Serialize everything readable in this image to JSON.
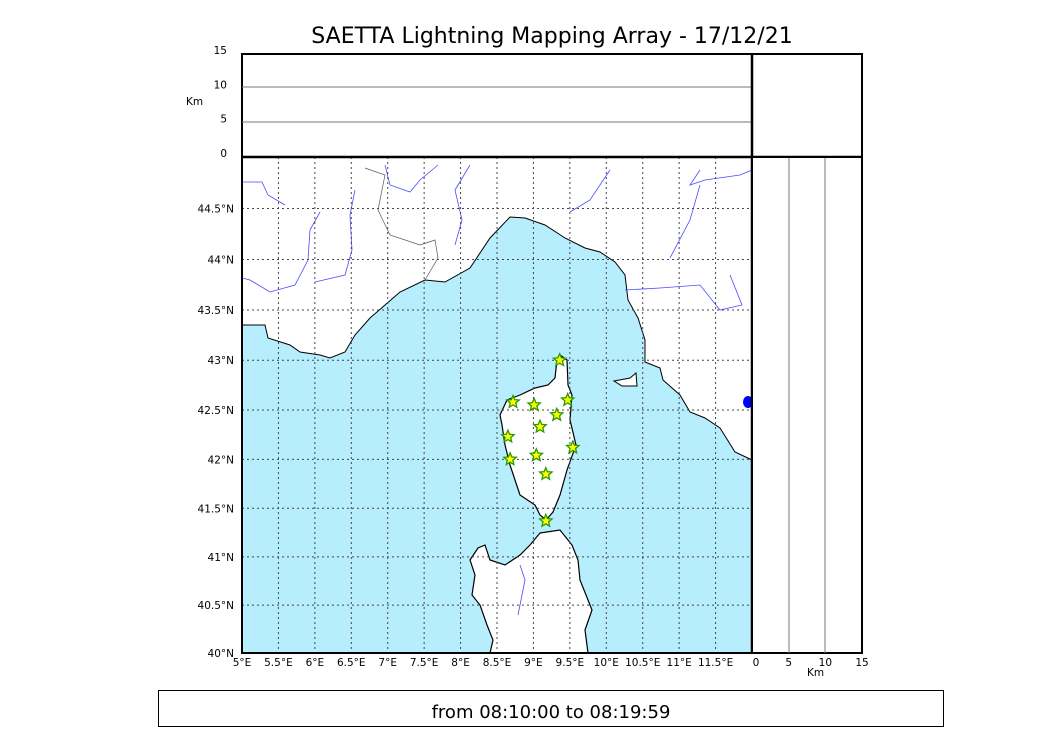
{
  "title": "SAETTA Lightning Mapping Array - 17/12/21",
  "time_range": "from 08:10:00 to 08:19:59",
  "colors": {
    "sea": "#b7eefd",
    "land": "#ffffff",
    "rivers": "#4a4aff",
    "source_marker": "#ffff00",
    "marker_edge": "#2a9a00",
    "side_marker": "#0000ff"
  },
  "chart_data": {
    "type": "scatter",
    "map": {
      "lon_range": [
        5,
        12
      ],
      "lat_range": [
        40,
        45
      ],
      "lon_ticks": [
        "5°E",
        "5.5°E",
        "6°E",
        "6.5°E",
        "7°E",
        "7.5°E",
        "8°E",
        "8.5°E",
        "9°E",
        "9.5°E",
        "10°E",
        "10.5°E",
        "11°E",
        "11.5°E"
      ],
      "lon_tick_values": [
        5,
        5.5,
        6,
        6.5,
        7,
        7.5,
        8,
        8.5,
        9,
        9.5,
        10,
        10.5,
        11,
        11.5
      ],
      "lat_ticks": [
        "40°N",
        "40.5°N",
        "41°N",
        "41.5°N",
        "42°N",
        "42.5°N",
        "43°N",
        "43.5°N",
        "44°N",
        "44.5°N"
      ],
      "lat_tick_values": [
        40,
        40.5,
        41,
        41.5,
        42,
        42.5,
        43,
        43.5,
        44,
        44.5
      ],
      "grid": true,
      "points": [
        {
          "lon": 9.36,
          "lat": 43.0
        },
        {
          "lon": 8.72,
          "lat": 42.58
        },
        {
          "lon": 9.01,
          "lat": 42.55
        },
        {
          "lon": 9.47,
          "lat": 42.6
        },
        {
          "lon": 9.32,
          "lat": 42.45
        },
        {
          "lon": 9.09,
          "lat": 42.33
        },
        {
          "lon": 8.65,
          "lat": 42.23
        },
        {
          "lon": 9.54,
          "lat": 42.12
        },
        {
          "lon": 9.04,
          "lat": 42.04
        },
        {
          "lon": 8.68,
          "lat": 42.0
        },
        {
          "lon": 9.17,
          "lat": 41.85
        },
        {
          "lon": 9.17,
          "lat": 41.37
        }
      ]
    },
    "altitude_panel": {
      "ylabel": "Km",
      "ylim": [
        0,
        15
      ],
      "ticks": [
        "0",
        "5",
        "10",
        "15"
      ],
      "tick_values": [
        0,
        5,
        10,
        15
      ]
    },
    "side_panel": {
      "xlabel": "Km",
      "xlim": [
        0,
        15
      ],
      "ticks": [
        "0",
        "5",
        "10",
        "15"
      ],
      "tick_values": [
        0,
        5,
        10,
        15
      ],
      "points": [
        {
          "alt_km": 0,
          "lat": 42.58
        }
      ]
    }
  }
}
